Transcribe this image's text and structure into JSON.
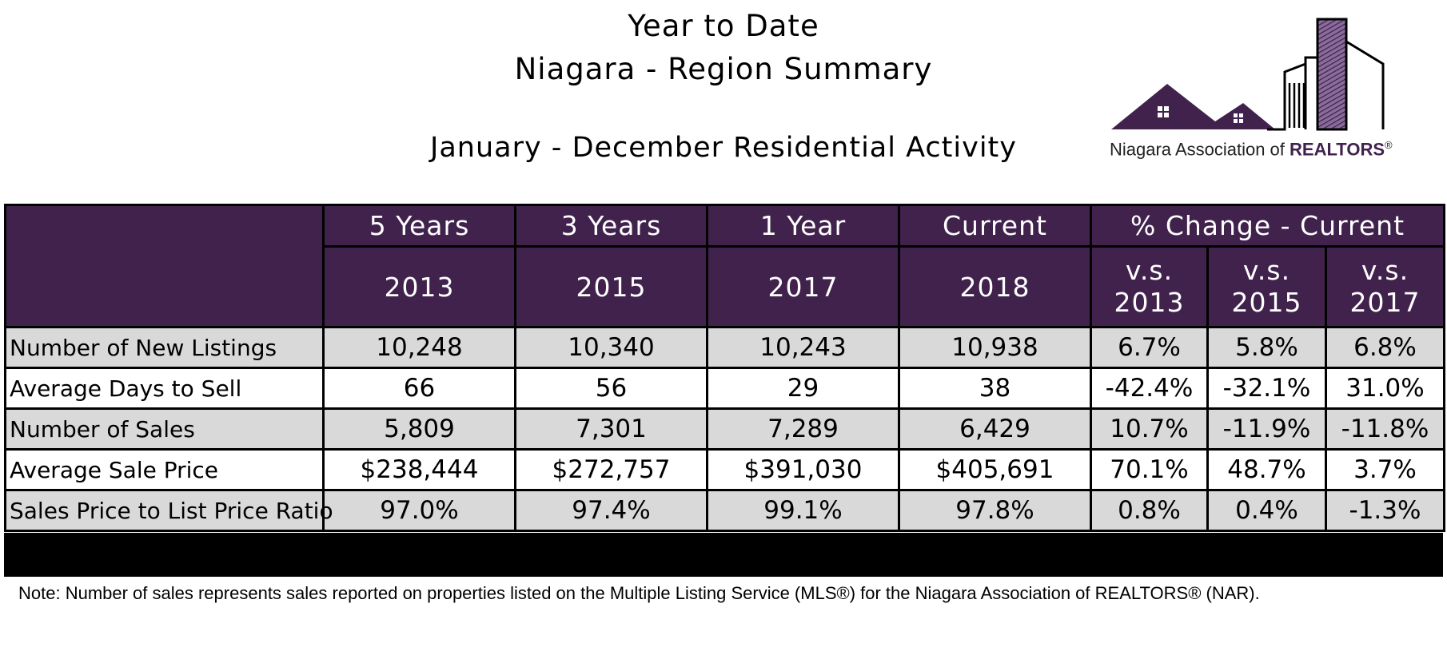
{
  "header": {
    "line1": "Year to Date",
    "line2": "Niagara - Region Summary",
    "line3": "January - December Residential Activity"
  },
  "logo": {
    "text_plain": "Niagara Association of ",
    "text_bold": "REALTORS",
    "mark": "®",
    "colors": {
      "purple": "#41224d",
      "hatch": "#6b4a80"
    }
  },
  "table": {
    "group_headers": [
      "5 Years",
      "3 Years",
      "1 Year",
      "Current",
      "% Change - Current"
    ],
    "year_headers": [
      "2013",
      "2015",
      "2017",
      "2018"
    ],
    "pct_headers": [
      {
        "top": "v.s.",
        "bottom": "2013"
      },
      {
        "top": "v.s.",
        "bottom": "2015"
      },
      {
        "top": "v.s.",
        "bottom": "2017"
      }
    ],
    "rows": [
      {
        "label": "Number of New Listings",
        "values": [
          "10,248",
          "10,340",
          "10,243",
          "10,938",
          "6.7%",
          "5.8%",
          "6.8%"
        ]
      },
      {
        "label": "Average Days to Sell",
        "values": [
          "66",
          "56",
          "29",
          "38",
          "-42.4%",
          "-32.1%",
          "31.0%"
        ]
      },
      {
        "label": "Number of Sales",
        "values": [
          "5,809",
          "7,301",
          "7,289",
          "6,429",
          "10.7%",
          "-11.9%",
          "-11.8%"
        ]
      },
      {
        "label": "Average Sale Price",
        "values": [
          "$238,444",
          "$272,757",
          "$391,030",
          "$405,691",
          "70.1%",
          "48.7%",
          "3.7%"
        ]
      },
      {
        "label": "Sales Price to List Price Ratio",
        "values": [
          "97.0%",
          "97.4%",
          "99.1%",
          "97.8%",
          "0.8%",
          "0.4%",
          "-1.3%"
        ]
      }
    ],
    "colors": {
      "header_bg": "#41224d",
      "shade": "#d9d9d9"
    }
  },
  "note": "Note: Number of sales represents sales reported on properties listed on the Multiple Listing Service (MLS®) for the Niagara Association of REALTORS® (NAR)."
}
